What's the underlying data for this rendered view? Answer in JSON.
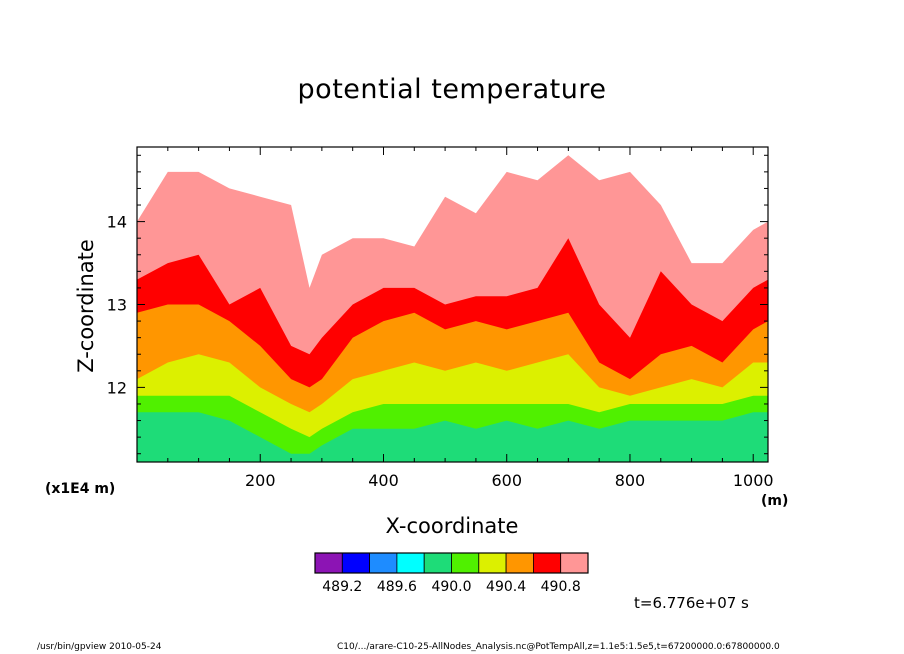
{
  "chart_data": {
    "type": "heatmap",
    "title": "potential temperature",
    "xlabel": "X-coordinate",
    "ylabel": "Z-coordinate",
    "x_unit": "(m)",
    "y_scale_note": "(x1E4 m)",
    "xlim": [
      0,
      1024
    ],
    "ylim": [
      11.1,
      14.9
    ],
    "x_ticks": [
      200,
      400,
      600,
      800,
      1000
    ],
    "y_ticks": [
      12,
      13,
      14
    ],
    "colorbar": {
      "colors": [
        "#8c14b4",
        "#0000ff",
        "#1e8cff",
        "#00ffff",
        "#1edc78",
        "#50f000",
        "#dcf000",
        "#ff9600",
        "#ff0000",
        "#ff9696"
      ],
      "tick_labels": [
        "489.2",
        "489.6",
        "490.0",
        "490.4",
        "490.8"
      ]
    },
    "layer_colors": [
      "#ff9696",
      "#ff0000",
      "#ff9600",
      "#dcf000",
      "#50f000",
      "#1edc78"
    ],
    "layer_tops": [
      {
        "x": 0,
        "z": [
          14.0,
          13.3,
          12.9,
          12.1,
          11.9,
          11.7
        ]
      },
      {
        "x": 50,
        "z": [
          14.6,
          13.5,
          13.0,
          12.3,
          11.9,
          11.7
        ]
      },
      {
        "x": 100,
        "z": [
          14.6,
          13.6,
          13.0,
          12.4,
          11.9,
          11.7
        ]
      },
      {
        "x": 150,
        "z": [
          14.4,
          13.0,
          12.8,
          12.3,
          11.9,
          11.6
        ]
      },
      {
        "x": 200,
        "z": [
          14.3,
          13.2,
          12.5,
          12.0,
          11.7,
          11.4
        ]
      },
      {
        "x": 250,
        "z": [
          14.2,
          12.5,
          12.1,
          11.8,
          11.5,
          11.2
        ]
      },
      {
        "x": 280,
        "z": [
          13.2,
          12.4,
          12.0,
          11.7,
          11.4,
          11.2
        ]
      },
      {
        "x": 300,
        "z": [
          13.6,
          12.6,
          12.1,
          11.8,
          11.5,
          11.3
        ]
      },
      {
        "x": 350,
        "z": [
          13.8,
          13.0,
          12.6,
          12.1,
          11.7,
          11.5
        ]
      },
      {
        "x": 400,
        "z": [
          13.8,
          13.2,
          12.8,
          12.2,
          11.8,
          11.5
        ]
      },
      {
        "x": 450,
        "z": [
          13.7,
          13.2,
          12.9,
          12.3,
          11.8,
          11.5
        ]
      },
      {
        "x": 500,
        "z": [
          14.3,
          13.0,
          12.7,
          12.2,
          11.8,
          11.6
        ]
      },
      {
        "x": 550,
        "z": [
          14.1,
          13.1,
          12.8,
          12.3,
          11.8,
          11.5
        ]
      },
      {
        "x": 600,
        "z": [
          14.6,
          13.1,
          12.7,
          12.2,
          11.8,
          11.6
        ]
      },
      {
        "x": 650,
        "z": [
          14.5,
          13.2,
          12.8,
          12.3,
          11.8,
          11.5
        ]
      },
      {
        "x": 700,
        "z": [
          14.8,
          13.8,
          12.9,
          12.4,
          11.8,
          11.6
        ]
      },
      {
        "x": 750,
        "z": [
          14.5,
          13.0,
          12.3,
          12.0,
          11.7,
          11.5
        ]
      },
      {
        "x": 800,
        "z": [
          14.6,
          12.6,
          12.1,
          11.9,
          11.8,
          11.6
        ]
      },
      {
        "x": 850,
        "z": [
          14.2,
          13.4,
          12.4,
          12.0,
          11.8,
          11.6
        ]
      },
      {
        "x": 900,
        "z": [
          13.5,
          13.0,
          12.5,
          12.1,
          11.8,
          11.6
        ]
      },
      {
        "x": 950,
        "z": [
          13.5,
          12.8,
          12.3,
          12.0,
          11.8,
          11.6
        ]
      },
      {
        "x": 1000,
        "z": [
          13.9,
          13.2,
          12.7,
          12.3,
          11.9,
          11.7
        ]
      },
      {
        "x": 1024,
        "z": [
          14.0,
          13.3,
          12.8,
          12.3,
          11.9,
          11.7
        ]
      }
    ]
  },
  "annotations": {
    "time": "t=6.776e+07 s",
    "footer_left": "/usr/bin/gpview   2010-05-24",
    "footer_right": "C10/.../arare-C10-25-AllNodes_Analysis.nc@PotTempAll,z=1.1e5:1.5e5,t=67200000.0:67800000.0"
  }
}
